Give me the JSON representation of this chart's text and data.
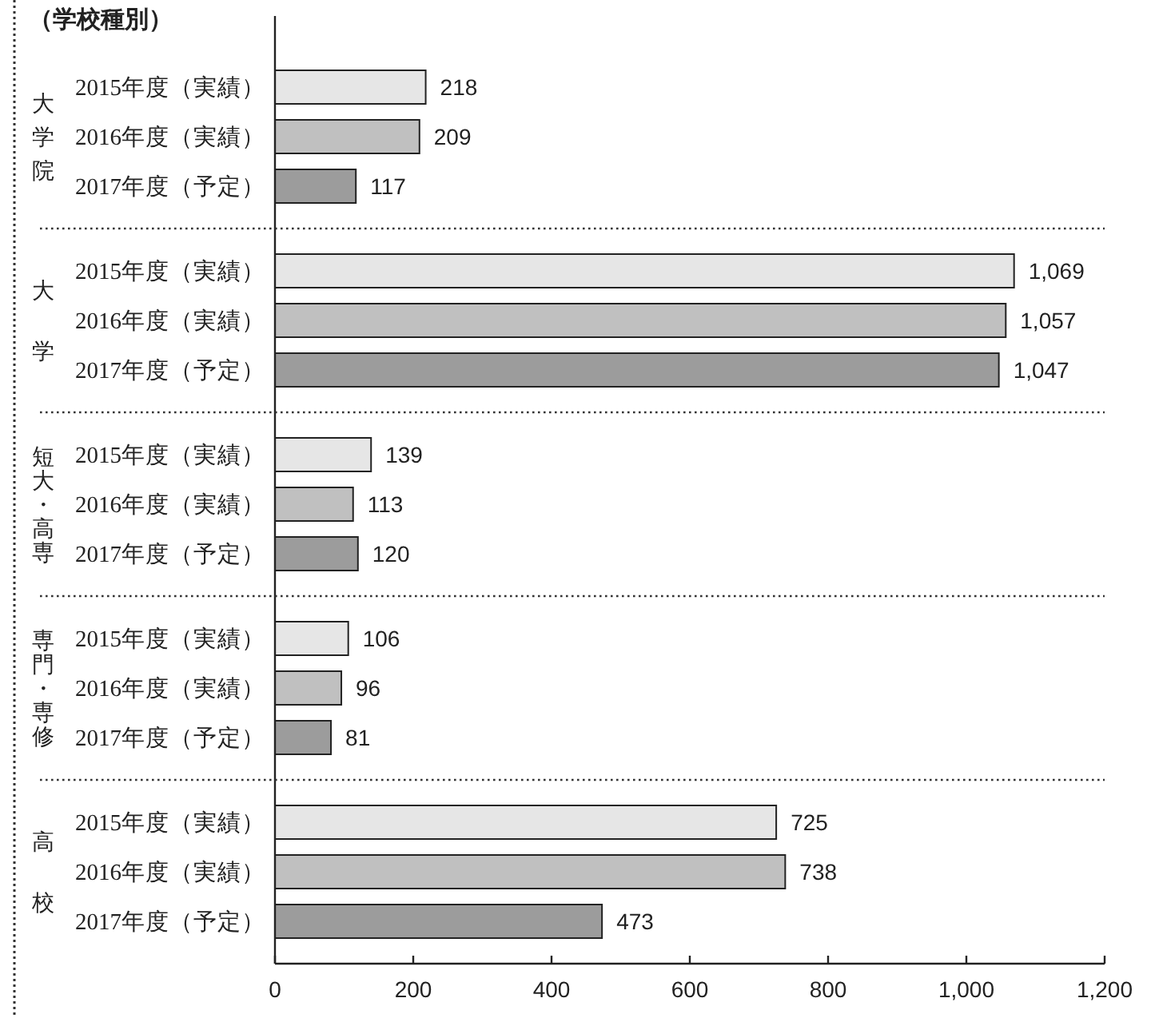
{
  "chart_data": [
    {
      "type": "bar",
      "orientation": "horizontal",
      "title": "（学校種別）",
      "ylabel": "大学院",
      "categories": [
        "2015年度（実績）",
        "2016年度（実績）",
        "2017年度（予定）"
      ],
      "values": [
        218,
        209,
        117
      ],
      "colors": [
        "#e6e6e6",
        "#c0c0c0",
        "#9c9c9c"
      ],
      "xlim": [
        0,
        1200
      ],
      "data_labels": true,
      "tick_labels": "y"
    },
    {
      "type": "bar",
      "orientation": "horizontal",
      "ylabel": "大学",
      "categories": [
        "2015年度（実績）",
        "2016年度（実績）",
        "2017年度（予定）"
      ],
      "values": [
        1069,
        1057,
        1047
      ],
      "value_labels": [
        "1,069",
        "1,057",
        "1,047"
      ],
      "colors": [
        "#e6e6e6",
        "#c0c0c0",
        "#9c9c9c"
      ],
      "xlim": [
        0,
        1200
      ],
      "tick_labels": "y"
    },
    {
      "type": "bar",
      "orientation": "horizontal",
      "ylabel": "短大・高専",
      "categories": [
        "2015年度（実績）",
        "2016年度（実績）",
        "2017年度（予定）"
      ],
      "values": [
        139,
        113,
        120
      ],
      "colors": [
        "#e6e6e6",
        "#c0c0c0",
        "#9c9c9c"
      ],
      "xlim": [
        0,
        1200
      ],
      "data_labels": true,
      "tick_labels": "y"
    },
    {
      "type": "bar",
      "orientation": "horizontal",
      "ylabel": "専門・専修",
      "categories": [
        "2015年度（実績）",
        "2016年度（実績）",
        "2017年度（予定）"
      ],
      "values": [
        106,
        96,
        81
      ],
      "colors": [
        "#e6e6e6",
        "#c0c0c0",
        "#9c9c9c"
      ],
      "xlim": [
        0,
        1200
      ],
      "data_labels": true,
      "tick_labels": "y"
    },
    {
      "type": "bar",
      "orientation": "horizontal",
      "ylabel": "高校",
      "categories": [
        "2015年度（実績）",
        "2016年度（実績）",
        "2017年度（予定）"
      ],
      "values": [
        725,
        738,
        473
      ],
      "colors": [
        "#e6e6e6",
        "#c0c0c0",
        "#9c9c9c"
      ],
      "xlim": [
        0,
        1200
      ],
      "xticks": [
        0,
        200,
        400,
        600,
        800,
        {
          "value": 1000,
          "label": "1,000"
        },
        {
          "value": 1200,
          "label": "1,200"
        }
      ],
      "data_labels": true
    }
  ]
}
